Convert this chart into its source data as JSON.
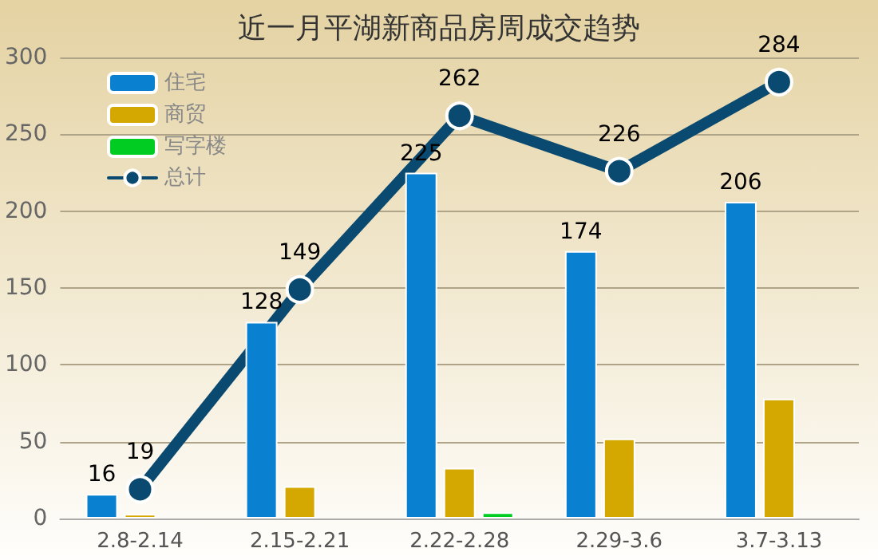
{
  "chart_data": {
    "type": "bar",
    "title": "近一月平湖新商品房周成交趋势",
    "categories": [
      "2.8-2.14",
      "2.15-2.21",
      "2.22-2.28",
      "2.29-3.6",
      "3.7-3.13"
    ],
    "series": [
      {
        "name": "住宅",
        "color": "#0a80d0",
        "values": [
          16,
          128,
          225,
          174,
          206
        ],
        "value_labels": [
          "16",
          "128",
          "225",
          "174",
          "206"
        ]
      },
      {
        "name": "商贸",
        "color": "#d4a800",
        "values": [
          3,
          21,
          33,
          52,
          78
        ]
      },
      {
        "name": "写字楼",
        "color": "#00cc22",
        "values": [
          null,
          null,
          4,
          null,
          null
        ]
      },
      {
        "name": "总计",
        "type": "line",
        "color": "#0a4a70",
        "values": [
          19,
          149,
          262,
          226,
          284
        ],
        "value_labels": [
          "19",
          "149",
          "262",
          "226",
          "284"
        ],
        "marker": "circle"
      }
    ],
    "ylim": [
      0,
      300
    ],
    "yticks": [
      0,
      50,
      100,
      150,
      200,
      250,
      300
    ],
    "grid": "y",
    "legend": "top left"
  }
}
